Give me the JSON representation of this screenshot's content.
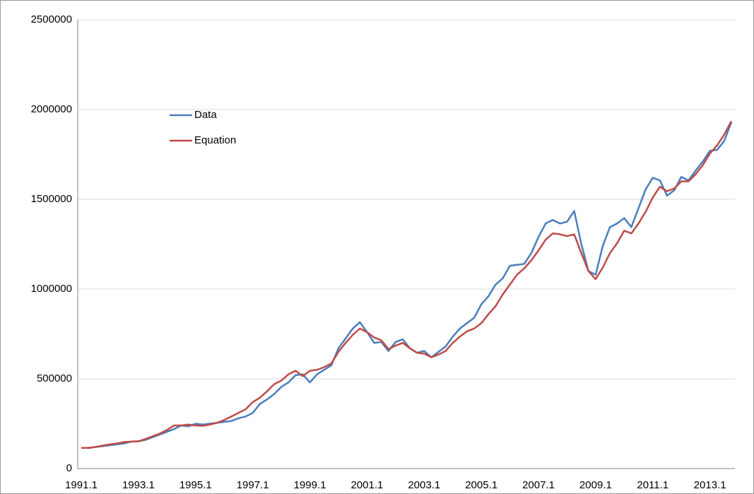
{
  "chart_data": {
    "type": "line",
    "categories": [
      "1991.1",
      null,
      null,
      null,
      null,
      null,
      null,
      null,
      "1993.1",
      null,
      null,
      null,
      null,
      null,
      null,
      null,
      "1995.1",
      null,
      null,
      null,
      null,
      null,
      null,
      null,
      "1997.1",
      null,
      null,
      null,
      null,
      null,
      null,
      null,
      "1999.1",
      null,
      null,
      null,
      null,
      null,
      null,
      null,
      "2001.1",
      null,
      null,
      null,
      null,
      null,
      null,
      null,
      "2003.1",
      null,
      null,
      null,
      null,
      null,
      null,
      null,
      "2005.1",
      null,
      null,
      null,
      null,
      null,
      null,
      null,
      "2007.1",
      null,
      null,
      null,
      null,
      null,
      null,
      null,
      "2009.1",
      null,
      null,
      null,
      null,
      null,
      null,
      null,
      "2011.1",
      null,
      null,
      null,
      null,
      null,
      null,
      null,
      "2013.1",
      null,
      null,
      null
    ],
    "series": [
      {
        "name": "Data",
        "color": "#4a7ebb",
        "values": [
          115000,
          115000,
          120000,
          125000,
          130000,
          135000,
          140000,
          150000,
          152000,
          160000,
          175000,
          190000,
          205000,
          220000,
          240000,
          235000,
          250000,
          245000,
          250000,
          255000,
          260000,
          265000,
          280000,
          290000,
          310000,
          360000,
          385000,
          415000,
          455000,
          480000,
          520000,
          525000,
          480000,
          525000,
          550000,
          575000,
          670000,
          725000,
          780000,
          815000,
          760000,
          700000,
          705000,
          655000,
          705000,
          720000,
          670000,
          645000,
          655000,
          620000,
          650000,
          680000,
          735000,
          780000,
          810000,
          840000,
          915000,
          960000,
          1025000,
          1060000,
          1130000,
          1135000,
          1140000,
          1200000,
          1290000,
          1365000,
          1385000,
          1365000,
          1375000,
          1435000,
          1250000,
          1100000,
          1080000,
          1240000,
          1345000,
          1365000,
          1395000,
          1345000,
          1450000,
          1555000,
          1620000,
          1605000,
          1520000,
          1550000,
          1625000,
          1605000,
          1660000,
          1710000,
          1770000,
          1775000,
          1825000,
          1930000
        ]
      },
      {
        "name": "Equation",
        "color": "#be4b48",
        "values": [
          115000,
          115000,
          120000,
          128000,
          135000,
          140000,
          148000,
          150000,
          152000,
          165000,
          180000,
          195000,
          215000,
          240000,
          240000,
          245000,
          240000,
          238000,
          245000,
          255000,
          270000,
          290000,
          310000,
          330000,
          370000,
          395000,
          430000,
          470000,
          490000,
          525000,
          545000,
          515000,
          545000,
          550000,
          565000,
          585000,
          650000,
          700000,
          745000,
          780000,
          760000,
          730000,
          715000,
          665000,
          685000,
          700000,
          670000,
          645000,
          640000,
          620000,
          635000,
          655000,
          700000,
          735000,
          765000,
          780000,
          810000,
          860000,
          905000,
          970000,
          1025000,
          1080000,
          1115000,
          1160000,
          1215000,
          1275000,
          1310000,
          1305000,
          1295000,
          1305000,
          1200000,
          1100000,
          1055000,
          1120000,
          1200000,
          1255000,
          1325000,
          1310000,
          1365000,
          1430000,
          1510000,
          1570000,
          1545000,
          1560000,
          1600000,
          1600000,
          1640000,
          1690000,
          1755000,
          1800000,
          1860000,
          1935000
        ]
      }
    ],
    "ylim": [
      0,
      2500000
    ],
    "yticks": [
      0,
      500000,
      1000000,
      1500000,
      2000000,
      2500000
    ],
    "grid": true
  }
}
